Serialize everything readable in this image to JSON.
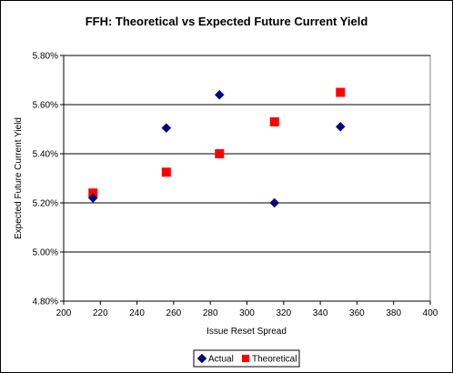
{
  "chart_data": {
    "type": "scatter",
    "title": "FFH: Theoretical vs Expected Future Current Yield",
    "xlabel": "Issue Reset Spread",
    "ylabel": "Expected Future Current Yield",
    "xlim": [
      200,
      400
    ],
    "ylim": [
      4.8,
      5.8
    ],
    "x_ticks": [
      "200",
      "220",
      "240",
      "260",
      "280",
      "300",
      "320",
      "340",
      "360",
      "380",
      "400"
    ],
    "y_ticks": [
      "4.80%",
      "5.00%",
      "5.20%",
      "5.40%",
      "5.60%",
      "5.80%"
    ],
    "grid": "horizontal",
    "legend_position": "bottom",
    "series": [
      {
        "name": "Actual",
        "marker": "diamond",
        "color": "#000080",
        "points": [
          {
            "x": 216,
            "y": 5.22
          },
          {
            "x": 256,
            "y": 5.505
          },
          {
            "x": 285,
            "y": 5.64
          },
          {
            "x": 315,
            "y": 5.2
          },
          {
            "x": 351,
            "y": 5.51
          }
        ]
      },
      {
        "name": "Theoretical",
        "marker": "square",
        "color": "#ff0000",
        "points": [
          {
            "x": 216,
            "y": 5.24
          },
          {
            "x": 256,
            "y": 5.325
          },
          {
            "x": 285,
            "y": 5.4
          },
          {
            "x": 315,
            "y": 5.53
          },
          {
            "x": 351,
            "y": 5.65
          }
        ]
      }
    ]
  }
}
